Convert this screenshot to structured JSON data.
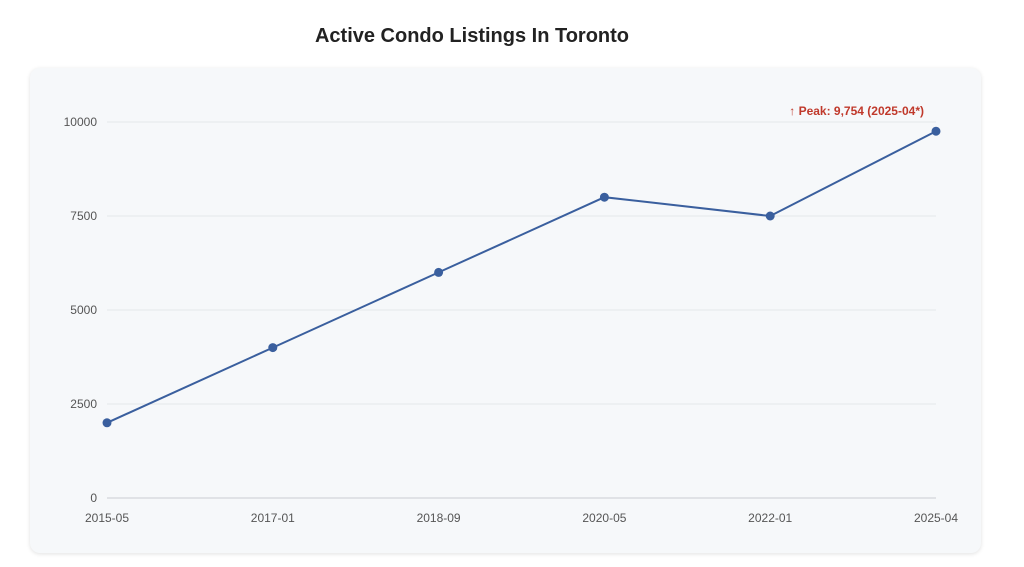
{
  "chart_data": {
    "type": "line",
    "title": "Active Condo Listings In Toronto",
    "xlabel": "",
    "ylabel": "",
    "categories": [
      "2015-05",
      "2017-01",
      "2018-09",
      "2020-05",
      "2022-01",
      "2025-04"
    ],
    "series": [
      {
        "values": [
          2000,
          4000,
          6000,
          8000,
          7500,
          9754
        ]
      }
    ],
    "ylim": [
      0,
      10000
    ],
    "yticks": [
      0,
      2500,
      5000,
      7500,
      10000
    ],
    "grid": true,
    "annotation": {
      "text": "↑ Peak: 9,754 (2025-04*)",
      "category": "2025-04",
      "value": 9754
    }
  },
  "colors": {
    "line": "#3a5f9e",
    "point": "#3a5f9e",
    "annotation": "#c0392b",
    "grid": "#e4e7eb",
    "axis": "#c9ccd1"
  }
}
